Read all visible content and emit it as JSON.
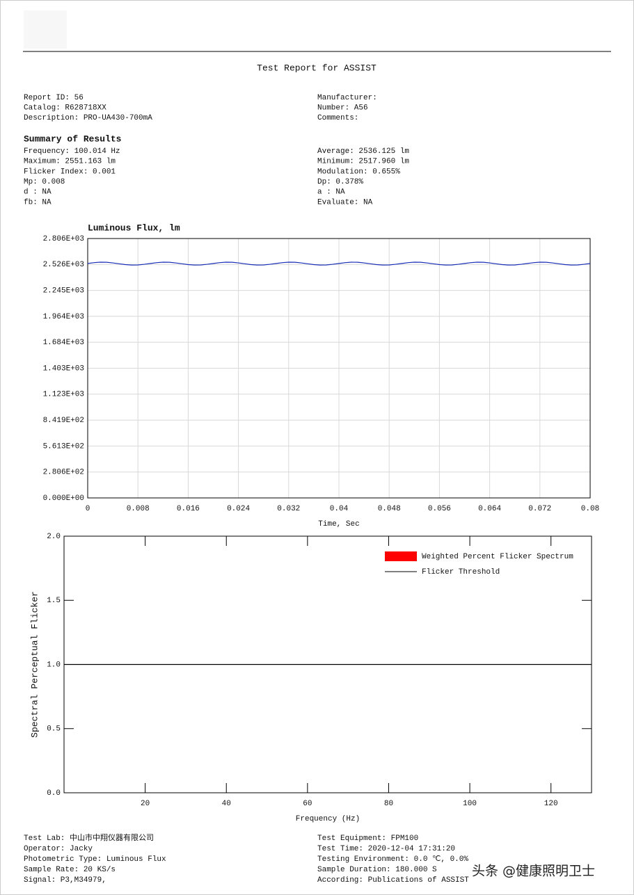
{
  "header": {
    "title": "Test Report for ASSIST"
  },
  "info": {
    "left": [
      "Report ID: 56",
      "Catalog: R628718XX",
      "Description: PRO-UA430-700mA"
    ],
    "right": [
      "Manufacturer:",
      "Number: A56",
      "Comments:"
    ]
  },
  "summary": {
    "heading": "Summary of Results",
    "left": [
      "Frequency: 100.014 Hz",
      "Maximum: 2551.163 lm",
      "Flicker Index: 0.001",
      "Mp: 0.008",
      "d : NA",
      "fb: NA"
    ],
    "right": [
      "Average: 2536.125 lm",
      "Minimum: 2517.960 lm",
      "Modulation: 0.655%",
      "Dp: 0.378%",
      "a : NA",
      "Evaluate: NA"
    ]
  },
  "chart_data": [
    {
      "type": "line",
      "title": "Luminous Flux, lm",
      "x_label": "Time, Sec",
      "grid": true,
      "x": [
        0,
        0.001,
        0.002,
        0.003,
        0.004,
        0.005,
        0.006,
        0.007,
        0.008,
        0.009,
        0.01,
        0.011,
        0.012,
        0.013,
        0.014,
        0.015,
        0.016,
        0.017,
        0.018,
        0.019,
        0.02,
        0.021,
        0.022,
        0.023,
        0.024,
        0.025,
        0.026,
        0.027,
        0.028,
        0.029,
        0.03,
        0.031,
        0.032,
        0.033,
        0.034,
        0.035,
        0.036,
        0.037,
        0.038,
        0.039,
        0.04,
        0.041,
        0.042,
        0.043,
        0.044,
        0.045,
        0.046,
        0.047,
        0.048,
        0.049,
        0.05,
        0.051,
        0.052,
        0.053,
        0.054,
        0.055,
        0.056,
        0.057,
        0.058,
        0.059,
        0.06,
        0.061,
        0.062,
        0.063,
        0.064,
        0.065,
        0.066,
        0.067,
        0.068,
        0.069,
        0.07,
        0.071,
        0.072,
        0.073,
        0.074,
        0.075,
        0.076,
        0.077,
        0.078,
        0.079,
        0.08
      ],
      "series": [
        {
          "color": "#1a2fb8",
          "values": [
            2536,
            2545,
            2550,
            2549,
            2542,
            2533,
            2524,
            2519,
            2520,
            2527,
            2536,
            2545,
            2550,
            2549,
            2542,
            2533,
            2524,
            2519,
            2520,
            2527,
            2536,
            2545,
            2550,
            2549,
            2542,
            2533,
            2524,
            2519,
            2520,
            2527,
            2536,
            2545,
            2550,
            2549,
            2542,
            2533,
            2524,
            2519,
            2520,
            2527,
            2536,
            2545,
            2550,
            2549,
            2542,
            2533,
            2524,
            2519,
            2520,
            2527,
            2536,
            2545,
            2550,
            2549,
            2542,
            2533,
            2524,
            2519,
            2520,
            2527,
            2536,
            2545,
            2550,
            2549,
            2542,
            2533,
            2524,
            2519,
            2520,
            2527,
            2536,
            2545,
            2550,
            2549,
            2542,
            2533,
            2524,
            2519,
            2520,
            2527,
            2536
          ]
        }
      ],
      "xlim": [
        0,
        0.08
      ],
      "xticks": [
        0,
        0.008,
        0.016,
        0.024,
        0.032,
        0.04,
        0.048,
        0.056,
        0.064,
        0.072,
        0.08
      ],
      "ylim": [
        0,
        2806
      ],
      "yticks": [
        {
          "value": 0,
          "label": "0.000E+00"
        },
        {
          "value": 280.6,
          "label": "2.806E+02"
        },
        {
          "value": 561.3,
          "label": "5.613E+02"
        },
        {
          "value": 841.9,
          "label": "8.419E+02"
        },
        {
          "value": 1123,
          "label": "1.123E+03"
        },
        {
          "value": 1403,
          "label": "1.403E+03"
        },
        {
          "value": 1684,
          "label": "1.684E+03"
        },
        {
          "value": 1964,
          "label": "1.964E+03"
        },
        {
          "value": 2245,
          "label": "2.245E+03"
        },
        {
          "value": 2526,
          "label": "2.526E+03"
        },
        {
          "value": 2806,
          "label": "2.806E+03"
        }
      ]
    },
    {
      "type": "line",
      "x_label": "Frequency (Hz)",
      "y_label": "Spectral Perceptual Flicker",
      "grid": false,
      "legend": "top-right",
      "series": [
        {
          "name": "Weighted Percent Flicker Spectrum",
          "color": "#ff0000"
        },
        {
          "name": "Flicker Threshold",
          "color": "#000000",
          "x": [
            0,
            130
          ],
          "values": [
            1,
            1
          ]
        }
      ],
      "xlim": [
        0,
        130
      ],
      "xticks": [
        20,
        40,
        60,
        80,
        100,
        120
      ],
      "ylim": [
        0,
        2
      ],
      "yticks": [
        {
          "value": 0,
          "label": "0.0"
        },
        {
          "value": 0.5,
          "label": "0.5"
        },
        {
          "value": 1,
          "label": "1.0"
        },
        {
          "value": 1.5,
          "label": "1.5"
        },
        {
          "value": 2,
          "label": "2.0"
        }
      ]
    }
  ],
  "footer": {
    "left": [
      "Test Lab: 中山市中翔仪器有限公司",
      "Operator: Jacky",
      "Photometric Type: Luminous Flux",
      "Sample Rate: 20 KS/s",
      "Signal: P3,M34979,"
    ],
    "right": [
      "Test Equipment: FPM100",
      "Test Time: 2020-12-04 17:31:20",
      "Testing Environment: 0.0 ℃, 0.0%",
      "Sample Duration: 180.000 S",
      "According: Publications of ASSIST"
    ]
  },
  "watermark": "头条 @健康照明卫士"
}
